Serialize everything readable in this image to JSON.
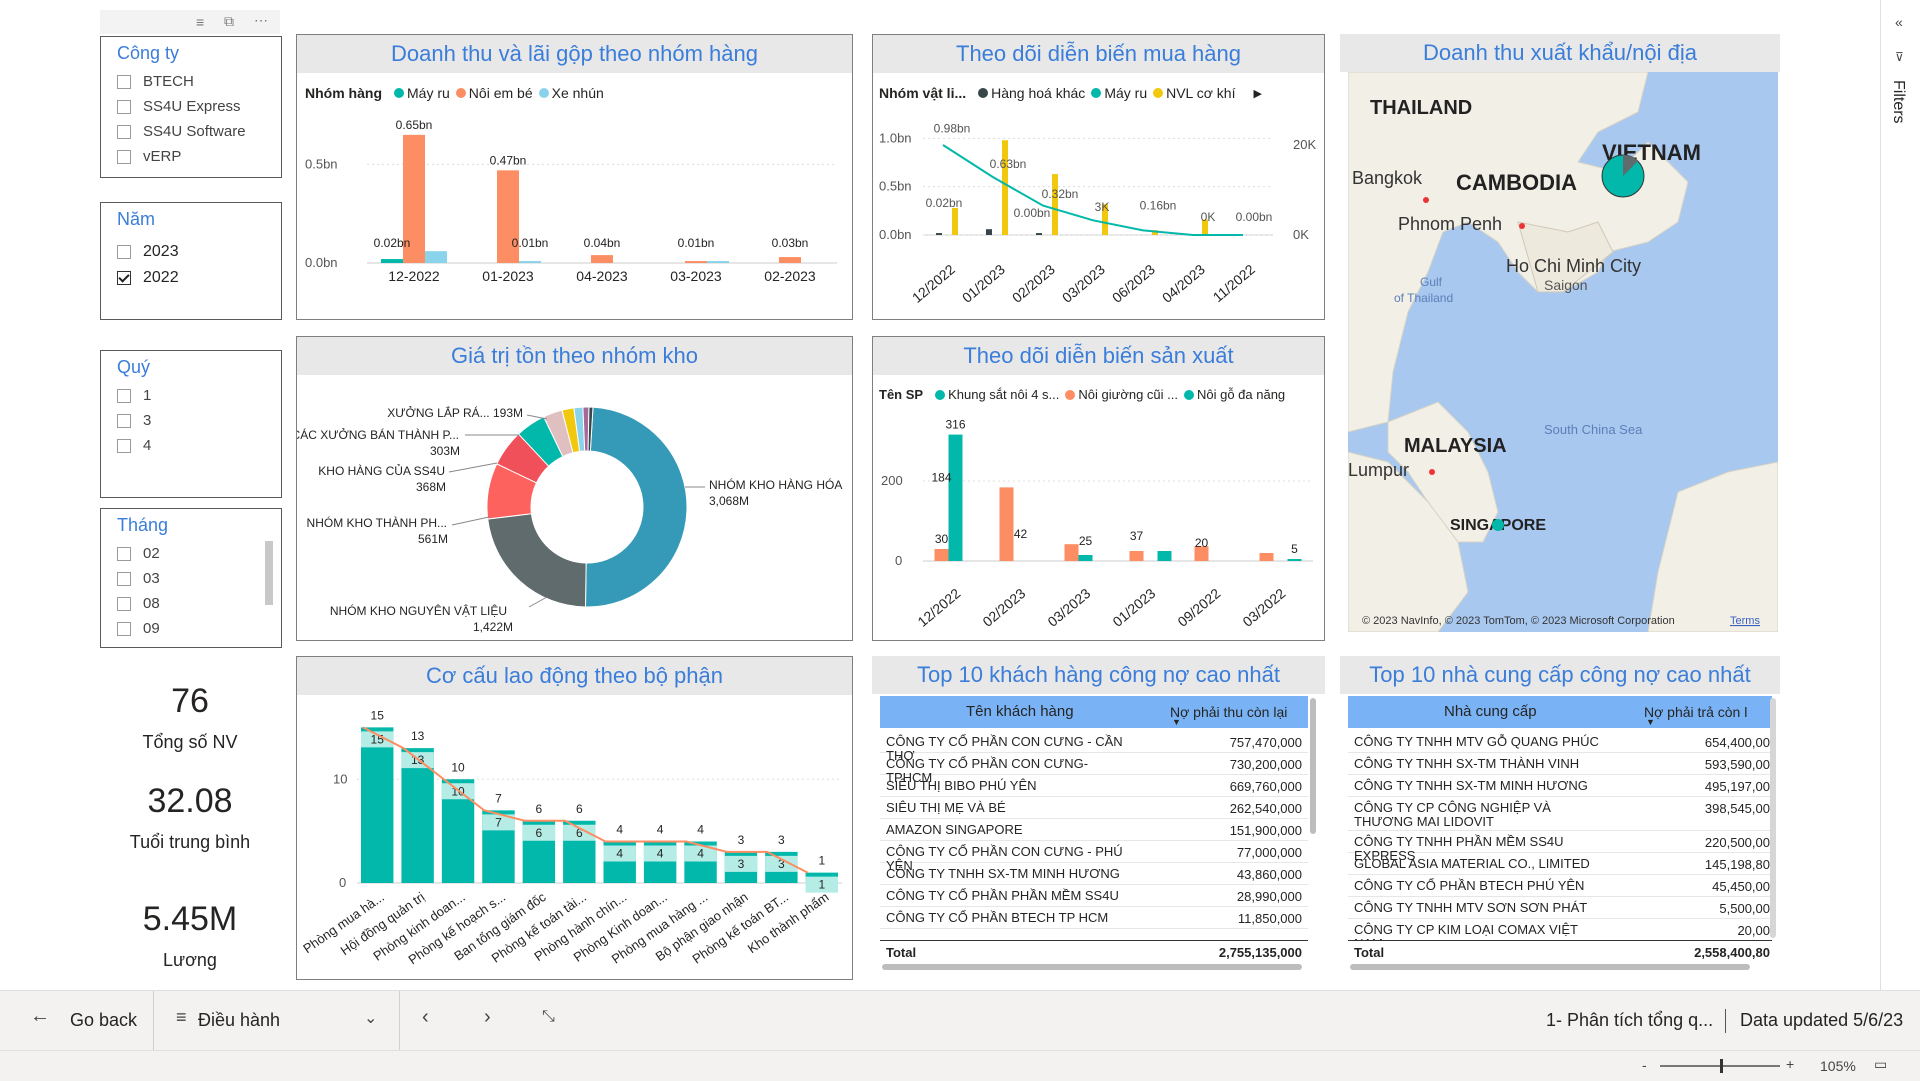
{
  "slicers": {
    "company": {
      "title": "Công ty",
      "items": [
        {
          "label": "BTECH",
          "checked": false
        },
        {
          "label": "SS4U Express",
          "checked": false
        },
        {
          "label": "SS4U Software",
          "checked": false
        },
        {
          "label": "vERP",
          "checked": false
        }
      ]
    },
    "year": {
      "title": "Năm",
      "items": [
        {
          "label": "2023",
          "checked": false
        },
        {
          "label": "2022",
          "checked": true
        }
      ]
    },
    "quarter": {
      "title": "Quý",
      "items": [
        {
          "label": "1",
          "checked": false
        },
        {
          "label": "3",
          "checked": false
        },
        {
          "label": "4",
          "checked": false
        }
      ]
    },
    "month": {
      "title": "Tháng",
      "items": [
        {
          "label": "02",
          "checked": false
        },
        {
          "label": "03",
          "checked": false
        },
        {
          "label": "08",
          "checked": false
        },
        {
          "label": "09",
          "checked": false
        }
      ]
    }
  },
  "kpis": [
    {
      "value": "76",
      "label": "Tổng số NV"
    },
    {
      "value": "32.08",
      "label": "Tuổi trung bình"
    },
    {
      "value": "5.45M",
      "label": "Lương"
    }
  ],
  "revenue": {
    "title": "Doanh thu và lãi gộp theo nhóm hàng",
    "legend_title": "Nhóm hàng",
    "legend": [
      {
        "name": "Máy ru",
        "color": "#01b8aa"
      },
      {
        "name": "Nôi em bé",
        "color": "#fd8d62"
      },
      {
        "name": "Xe nhún",
        "color": "#8ad4eb"
      }
    ],
    "ticks": [
      "0.5bn",
      "0.0bn"
    ]
  },
  "purchase": {
    "title": "Theo dõi diễn biến mua hàng",
    "legend_title": "Nhóm vật li...",
    "legend": [
      {
        "name": "Hàng hoá khác",
        "color": "#374649"
      },
      {
        "name": "Máy ru",
        "color": "#01b8aa"
      },
      {
        "name": "NVL cơ khí",
        "color": "#f2c80f"
      }
    ],
    "left_ticks": [
      "1.0bn",
      "0.5bn",
      "0.0bn"
    ],
    "right_ticks": [
      "20K",
      "0K"
    ]
  },
  "inventory": {
    "title": "Giá trị tồn theo nhóm kho"
  },
  "production": {
    "title": "Theo dõi diễn biến sản xuất",
    "legend_title": "Tên SP",
    "legend": [
      {
        "name": "Khung sắt nôi 4 s...",
        "color": "#01b8aa"
      },
      {
        "name": "Nôi giường cũi ...",
        "color": "#fd8d62"
      },
      {
        "name": "Nôi gỗ đa năng",
        "color": "#01b8aa"
      }
    ],
    "ticks": [
      "200",
      "0"
    ]
  },
  "labor": {
    "title": "Cơ cấu lao động theo bộ phận",
    "ticks": [
      "10",
      "0"
    ]
  },
  "map": {
    "title": "Doanh thu xuất khẩu/nội địa",
    "labels": [
      "THAILAND",
      "Bangkok",
      "CAMBODIA",
      "VIETNAM",
      "Phnom Penh",
      "Gulf",
      "of Thailand",
      "Ho Chi Minh City",
      "Saigon",
      "MALAYSIA",
      "South China Sea",
      "Lumpur",
      "SINGAPORE"
    ],
    "copyright": "© 2023 NavInfo, © 2023 TomTom, © 2023 Microsoft Corporation",
    "terms": "Terms"
  },
  "customers": {
    "title": "Top 10 khách hàng công nợ cao nhất",
    "col1": "Tên khách hàng",
    "col2": "Nợ phải thu còn lại",
    "rows": [
      {
        "name": "CÔNG TY CỔ PHẦN CON CƯNG - CẦN THƠ",
        "value": "757,470,000"
      },
      {
        "name": "CÔNG TY CỔ PHẦN CON CƯNG- TPHCM",
        "value": "730,200,000"
      },
      {
        "name": "SIÊU THỊ BIBO PHÚ YÊN",
        "value": "669,760,000"
      },
      {
        "name": "SIÊU THỊ MẸ VÀ BÉ",
        "value": "262,540,000"
      },
      {
        "name": "AMAZON SINGAPORE",
        "value": "151,900,000"
      },
      {
        "name": "CÔNG TY CỔ PHẦN CON CƯNG - PHÚ YÊN",
        "value": "77,000,000"
      },
      {
        "name": "CÔNG TY TNHH SX-TM MINH HƯƠNG",
        "value": "43,860,000"
      },
      {
        "name": "CÔNG TY CỔ PHẦN PHẦN MỀM SS4U",
        "value": "28,990,000"
      },
      {
        "name": "CÔNG TY CỔ PHẦN BTECH TP HCM",
        "value": "11,850,000"
      }
    ],
    "total_label": "Total",
    "total_value": "2,755,135,000"
  },
  "suppliers": {
    "title": "Top 10 nhà cung cấp công nợ cao nhất",
    "col1": "Nhà cung cấp",
    "col2": "Nợ phải trả còn l",
    "rows": [
      {
        "name": "CÔNG TY TNHH MTV GỖ QUANG PHÚC",
        "value": "654,400,00"
      },
      {
        "name": "CÔNG TY TNHH SX-TM THÀNH VINH",
        "value": "593,590,00"
      },
      {
        "name": "CÔNG TY TNHH SX-TM MINH HƯƠNG",
        "value": "495,197,00"
      },
      {
        "name": "CÔNG TY CP CÔNG NGHIỆP VÀ THƯƠNG MAI LIDOVIT",
        "value": "398,545,00"
      },
      {
        "name": "CÔNG TY TNHH PHẦN MỀM SS4U EXPRESS",
        "value": "220,500,00"
      },
      {
        "name": "GLOBAL ASIA MATERIAL CO., LIMITED",
        "value": "145,198,80"
      },
      {
        "name": "CÔNG TY CỔ PHẦN BTECH PHÚ YÊN",
        "value": "45,450,00"
      },
      {
        "name": "CÔNG TY TNHH MTV SƠN SƠN PHÁT",
        "value": "5,500,00"
      },
      {
        "name": "CÔNG TY CP KIM LOẠI COMAX VIỆT NAM",
        "value": "20,00"
      }
    ],
    "total_label": "Total",
    "total_value": "2,558,400,80"
  },
  "bottom": {
    "go_back": "Go back",
    "page_select": "Điều hành",
    "page_name": "1- Phân tích tổng q...",
    "updated": "Data updated 5/6/23",
    "zoom": "105%",
    "filters": "Filters"
  },
  "chart_data": [
    {
      "type": "bar",
      "title": "Doanh thu và lãi gộp theo nhóm hàng",
      "categories": [
        "12-2022",
        "01-2023",
        "04-2023",
        "03-2023",
        "02-2023"
      ],
      "series": [
        {
          "name": "Máy ru",
          "values": [
            0.02,
            0.0,
            0.0,
            0.0,
            0.0
          ]
        },
        {
          "name": "Nôi em bé",
          "values": [
            0.65,
            0.47,
            0.04,
            0.01,
            0.03
          ]
        },
        {
          "name": "Xe nhún",
          "values": [
            0.06,
            0.01,
            0.0,
            0.01,
            0.0
          ]
        }
      ],
      "data_labels": [
        "0.02bn",
        "0.65bn",
        "0.47bn",
        "0.01bn",
        "0.04bn",
        "0.01bn",
        "0.03bn"
      ],
      "ylim": [
        0,
        0.7
      ]
    },
    {
      "type": "bar",
      "title": "Theo dõi diễn biến mua hàng",
      "categories": [
        "12/2022",
        "01/2023",
        "02/2023",
        "03/2023",
        "06/2023",
        "04/2023",
        "11/2022"
      ],
      "series": [
        {
          "name": "Hàng hoá khác",
          "values": [
            0.02,
            0.06,
            0.02,
            0.0,
            0.0,
            0.0,
            0.0
          ]
        },
        {
          "name": "Máy ru",
          "values": [
            0.0,
            0.0,
            0.0,
            0.0,
            0.0,
            0.0,
            0.0
          ]
        },
        {
          "name": "NVL cơ khí",
          "values": [
            0.28,
            0.98,
            0.63,
            0.32,
            0.05,
            0.16,
            0.0
          ]
        }
      ],
      "line_labels": [
        "0.98bn",
        "0.63bn",
        "0.02bn",
        "0.32bn",
        "0.00bn",
        "3K",
        "0.16bn",
        "0K",
        "0.00bn"
      ],
      "ylim": [
        0,
        1.2
      ]
    },
    {
      "type": "pie",
      "title": "Giá trị tồn theo nhóm kho",
      "slices": [
        {
          "label": "NHÓM KHO HÀNG HÓA",
          "value": 3068,
          "text": "3,068M",
          "color": "#3599b8"
        },
        {
          "label": "NHÓM KHO NGUYÊN VẬT LIỆU",
          "value": 1422,
          "text": "1,422M",
          "color": "#5f6b6d"
        },
        {
          "label": "NHÓM KHO THÀNH PH...",
          "value": 561,
          "text": "561M",
          "color": "#fd625e"
        },
        {
          "label": "KHO HÀNG CỦA SS4U",
          "value": 368,
          "text": "368M",
          "color": "#f0505a"
        },
        {
          "label": "CÁC XƯỞNG BÁN THÀNH P...",
          "value": 303,
          "text": "303M",
          "color": "#01b8aa"
        },
        {
          "label": "XƯỞNG LẮP RÁ...",
          "value": 193,
          "text": "193M",
          "color": "#dfbfbf"
        },
        {
          "label": "other1",
          "value": 120,
          "text": "",
          "color": "#f2c80f"
        },
        {
          "label": "other2",
          "value": 90,
          "text": "",
          "color": "#8ad4eb"
        },
        {
          "label": "other3",
          "value": 60,
          "text": "",
          "color": "#a66999"
        },
        {
          "label": "other4",
          "value": 40,
          "text": "",
          "color": "#374649"
        }
      ]
    },
    {
      "type": "bar",
      "title": "Theo dõi diễn biến sản xuất",
      "categories": [
        "12/2022",
        "02/2023",
        "03/2023",
        "01/2023",
        "09/2022",
        "03/2022"
      ],
      "series": [
        {
          "name": "Nôi giường cũi ...",
          "values": [
            30,
            184,
            42,
            25,
            37,
            20
          ]
        },
        {
          "name": "Khung sắt nôi 4 s...",
          "values": [
            316,
            0,
            15,
            0,
            0,
            0
          ]
        },
        {
          "name": "Nôi gỗ đa năng",
          "values": [
            0,
            0,
            0,
            25,
            0,
            5
          ]
        }
      ],
      "data_labels": [
        "30",
        "184",
        "316",
        "42",
        "25",
        "37",
        "20",
        "5"
      ],
      "ylim": [
        0,
        350
      ]
    },
    {
      "type": "bar",
      "title": "Cơ cấu lao động theo bộ phận",
      "categories": [
        "Phòng mua hà...",
        "Hội đồng quản trị",
        "Phòng kinh doan...",
        "Phòng kế hoạch s...",
        "Ban tổng giám đốc",
        "Phòng kế toán tài...",
        "Phòng hành chín...",
        "Phòng Kinh doan...",
        "Phòng mua hàng ...",
        "Bộ phận giao nhận",
        "Phòng kế toán BT...",
        "Kho thành phẩm"
      ],
      "values": [
        15,
        13,
        10,
        7,
        6,
        6,
        4,
        4,
        4,
        3,
        3,
        1
      ],
      "ylim": [
        0,
        16
      ]
    }
  ]
}
